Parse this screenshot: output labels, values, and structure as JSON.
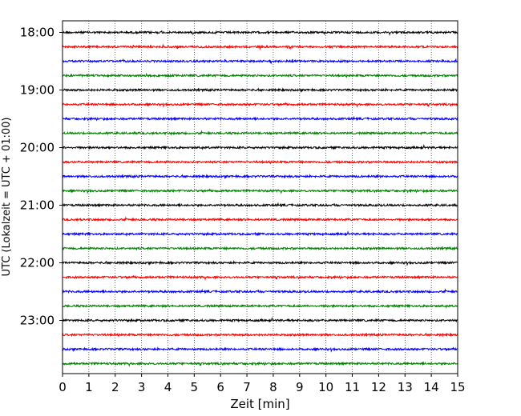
{
  "chart_data": {
    "type": "line",
    "title": "",
    "xlabel": "Zeit  [min]",
    "ylabel": "UTC (Lokalzeit = UTC + 01:00)",
    "xlim": [
      0,
      15
    ],
    "x_ticks": [
      0,
      1,
      2,
      3,
      4,
      5,
      6,
      7,
      8,
      9,
      10,
      11,
      12,
      13,
      14,
      15
    ],
    "x_tick_labels": [
      "0",
      "1",
      "2",
      "3",
      "4",
      "5",
      "6",
      "7",
      "8",
      "9",
      "10",
      "11",
      "12",
      "13",
      "14",
      "15"
    ],
    "y_tick_labels": [
      "18:00",
      "19:00",
      "20:00",
      "21:00",
      "22:00",
      "23:00"
    ],
    "vertical_grid": "dotted",
    "trace_color_cycle": [
      "#000000",
      "#ff0000",
      "#0000ff",
      "#008000"
    ],
    "trace_interval_min": 15,
    "traces": [
      {
        "start": "18:00",
        "color": "#000000"
      },
      {
        "start": "18:15",
        "color": "#ff0000"
      },
      {
        "start": "18:30",
        "color": "#0000ff"
      },
      {
        "start": "18:45",
        "color": "#008000"
      },
      {
        "start": "19:00",
        "color": "#000000"
      },
      {
        "start": "19:15",
        "color": "#ff0000"
      },
      {
        "start": "19:30",
        "color": "#0000ff"
      },
      {
        "start": "19:45",
        "color": "#008000"
      },
      {
        "start": "20:00",
        "color": "#000000"
      },
      {
        "start": "20:15",
        "color": "#ff0000"
      },
      {
        "start": "20:30",
        "color": "#0000ff"
      },
      {
        "start": "20:45",
        "color": "#008000"
      },
      {
        "start": "21:00",
        "color": "#000000"
      },
      {
        "start": "21:15",
        "color": "#ff0000"
      },
      {
        "start": "21:30",
        "color": "#0000ff"
      },
      {
        "start": "21:45",
        "color": "#008000"
      },
      {
        "start": "22:00",
        "color": "#000000"
      },
      {
        "start": "22:15",
        "color": "#ff0000"
      },
      {
        "start": "22:30",
        "color": "#0000ff"
      },
      {
        "start": "22:45",
        "color": "#008000"
      },
      {
        "start": "23:00",
        "color": "#000000"
      },
      {
        "start": "23:15",
        "color": "#ff0000"
      },
      {
        "start": "23:30",
        "color": "#0000ff"
      },
      {
        "start": "23:45",
        "color": "#008000"
      }
    ]
  }
}
